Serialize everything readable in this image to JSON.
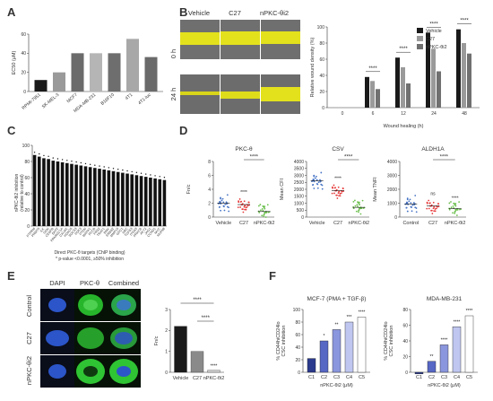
{
  "panels": {
    "A": {
      "letter": "A"
    },
    "B": {
      "letter": "B",
      "columns": [
        "Vehicle",
        "C27",
        "nPKC-θi2"
      ],
      "rows": [
        "0 h",
        "24 h"
      ]
    },
    "C": {
      "letter": "C",
      "xlabel_line1": "Direct PKC-θ targets (ChIP binding)",
      "xlabel_line2": "* p-value <0.0001, ≥50% inhibition",
      "ylabel_line1": "nPKC-θi2 inhibition",
      "ylabel_line2": "(relative to control)"
    },
    "D": {
      "letter": "D",
      "titles": [
        "PKC-θ",
        "CSV",
        "ALDH1A"
      ]
    },
    "E": {
      "letter": "E",
      "columns": [
        "DAPI",
        "PKC-θ",
        "Combined"
      ],
      "rows": [
        "Control",
        "C27",
        "nPKC-θi2"
      ]
    },
    "F": {
      "letter": "F",
      "titles": [
        "MCF-7 (PMA + TGF-β)",
        "MDA-MB-231"
      ]
    }
  },
  "chart_data": [
    {
      "id": "A",
      "type": "bar",
      "title": "",
      "ylabel": "EC50 (μM)",
      "ylim": [
        0,
        60
      ],
      "yticks": [
        "0",
        "20",
        "40",
        "60"
      ],
      "categories": [
        "RPMI-7951",
        "SK-MEL-3",
        "MCF7",
        "MDA-MB-231",
        "B16F10",
        "4T1",
        "4T1-luc"
      ],
      "values": [
        12,
        20,
        40,
        40,
        40,
        55,
        36
      ],
      "colors": [
        "#1a1a1a",
        "#9a9a9a",
        "#6b6b6b",
        "#b5b5b5",
        "#6e6e6e",
        "#a8a8a8",
        "#6a6a6a"
      ]
    },
    {
      "id": "B",
      "type": "bar",
      "title": "",
      "xlabel": "Wound healing (h)",
      "ylabel": "Relative wound density (%)",
      "ylim": [
        0,
        100
      ],
      "yticks": [
        "0",
        "20",
        "40",
        "60",
        "80",
        "100"
      ],
      "categories": [
        "0",
        "6",
        "12",
        "24",
        "48"
      ],
      "series": [
        {
          "name": "Vehicle",
          "color": "#1a1a1a",
          "values": [
            0,
            38,
            62,
            93,
            97
          ]
        },
        {
          "name": "C27",
          "color": "#9a9a9a",
          "values": [
            0,
            33,
            50,
            73,
            80
          ]
        },
        {
          "name": "nPKC-θi2",
          "color": "#707070",
          "values": [
            0,
            23,
            30,
            45,
            67
          ]
        }
      ],
      "significance": [
        "****",
        "****",
        "****",
        "****"
      ]
    },
    {
      "id": "C",
      "type": "bar",
      "title": "",
      "ylim": [
        0,
        100
      ],
      "yticks": [
        "0",
        "20",
        "40",
        "60",
        "80",
        "100"
      ],
      "categories": [
        "PTPRM",
        "PRMT5",
        "ILK",
        "GSN",
        "CEBPB",
        "SKP2",
        "PPARGC1A",
        "CALM1",
        "HDAC6",
        "SOCS3",
        "PDK3",
        "PTEN",
        "MAPK1",
        "PCCB",
        "FRS2",
        "TRAF1",
        "BMX",
        "ERBB2",
        "MMP15",
        "GPC1",
        "SRC",
        "TGFB3",
        "ITGB3",
        "PRKCB",
        "AKT2",
        "JAG1",
        "CCND1",
        "MYC",
        "NUP98"
      ],
      "values": [
        88,
        86,
        84,
        83,
        81,
        80,
        79,
        78,
        77,
        76,
        75,
        74,
        73,
        72,
        71,
        70,
        69,
        68,
        67,
        66,
        65,
        64,
        63,
        62,
        61,
        60,
        59,
        58,
        57
      ]
    },
    {
      "id": "D1",
      "type": "scatter",
      "title": "PKC-θ",
      "ylabel": "Fn/c",
      "ylim": [
        0,
        8
      ],
      "yticks": [
        "0",
        "2",
        "4",
        "6",
        "8"
      ],
      "categories": [
        "Vehicle",
        "C27",
        "nPKC-θi2"
      ],
      "means": [
        2.0,
        1.8,
        0.8
      ],
      "colors": [
        "#4472c4",
        "#e63a3a",
        "#6abf4b"
      ],
      "significance": [
        "****",
        "****"
      ]
    },
    {
      "id": "D2",
      "type": "scatter",
      "title": "CSV",
      "ylabel": "Mean CFI",
      "ylim": [
        0,
        4000
      ],
      "yticks": [
        "0",
        "500",
        "1000",
        "1500",
        "2000",
        "2500",
        "3000",
        "3500",
        "4000"
      ],
      "categories": [
        "Vehicle",
        "C27",
        "nPKC-θi2"
      ],
      "means": [
        2600,
        1900,
        700
      ],
      "colors": [
        "#4472c4",
        "#e63a3a",
        "#6abf4b"
      ],
      "significance": [
        "****",
        "****"
      ]
    },
    {
      "id": "D3",
      "type": "scatter",
      "title": "ALDH1A",
      "ylabel": "Mean TNFI",
      "ylim": [
        0,
        4000
      ],
      "yticks": [
        "0",
        "1000",
        "2000",
        "3000",
        "4000"
      ],
      "categories": [
        "Control",
        "C27",
        "nPKC-θi2"
      ],
      "means": [
        950,
        800,
        600
      ],
      "colors": [
        "#4472c4",
        "#e63a3a",
        "#6abf4b"
      ],
      "significance": [
        "ns",
        "****",
        "****"
      ]
    },
    {
      "id": "E",
      "type": "bar",
      "title": "",
      "ylabel": "Fn/c",
      "ylim": [
        0,
        3
      ],
      "yticks": [
        "0",
        "1",
        "2",
        "3"
      ],
      "categories": [
        "Vehicle",
        "C27",
        "nPKC-θi2"
      ],
      "values": [
        2.2,
        1.0,
        0.1
      ],
      "colors": [
        "#1a1a1a",
        "#8a8a8a",
        "#cfcfcf"
      ],
      "significance": [
        "****",
        "****",
        "****"
      ]
    },
    {
      "id": "F1",
      "type": "bar",
      "title": "MCF-7 (PMA + TGF-β)",
      "xlabel": "nPKC-θi2 (μM)",
      "ylabel_line1": "% CD44hiCD24lo",
      "ylabel_line2": "CSC inhibition",
      "ylim": [
        0,
        100
      ],
      "yticks": [
        "0",
        "20",
        "40",
        "60",
        "80",
        "100"
      ],
      "categories": [
        "C1",
        "C2",
        "C3",
        "C4",
        "C5"
      ],
      "values": [
        22,
        50,
        68,
        80,
        88
      ],
      "colors": [
        "#2b3a8c",
        "#5667c4",
        "#8a96dd",
        "#bfc6ef",
        "#ffffff"
      ],
      "significance": [
        "*",
        "**",
        "***",
        "****"
      ]
    },
    {
      "id": "F2",
      "type": "bar",
      "title": "MDA-MB-231",
      "xlabel": "nPKC-θi2 (μM)",
      "ylabel_line1": "% CD44hiCD24lo",
      "ylabel_line2": "CSC inhibition",
      "ylim": [
        0,
        80
      ],
      "yticks": [
        "0",
        "20",
        "40",
        "60",
        "80"
      ],
      "categories": [
        "C1",
        "C2",
        "C3",
        "C4",
        "C5"
      ],
      "values": [
        -2,
        14,
        35,
        58,
        72
      ],
      "colors": [
        "#2b3a8c",
        "#5667c4",
        "#8a96dd",
        "#bfc6ef",
        "#ffffff"
      ],
      "significance": [
        "**",
        "****",
        "****",
        "****"
      ]
    }
  ]
}
